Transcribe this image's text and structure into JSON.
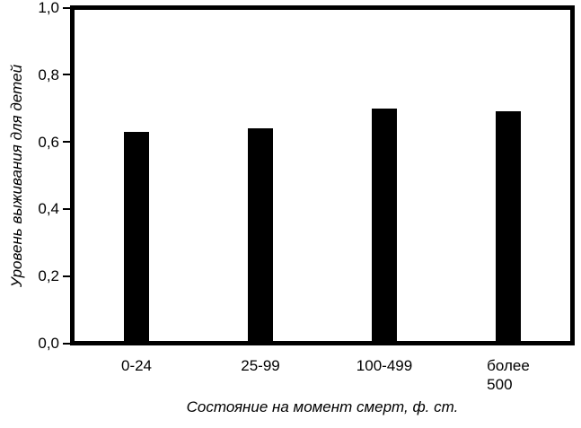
{
  "chart_data": {
    "type": "bar",
    "categories": [
      "0-24",
      "25-99",
      "100-499",
      "более\n500"
    ],
    "values": [
      0.63,
      0.64,
      0.7,
      0.69
    ],
    "xlabel": "Состояние на момент смерт, ф. ст.",
    "ylabel": "Уровень выживания для детей",
    "ylim": [
      0.0,
      1.0
    ],
    "ytick_step": 0.2,
    "yticks": [
      {
        "value": 1.0,
        "label": "1,0"
      },
      {
        "value": 0.8,
        "label": "0,8"
      },
      {
        "value": 0.6,
        "label": "0,6"
      },
      {
        "value": 0.4,
        "label": "0,4"
      },
      {
        "value": 0.2,
        "label": "0,2"
      },
      {
        "value": 0.0,
        "label": "0,0"
      }
    ],
    "bar_color": "#000000",
    "frame_color": "#000000",
    "background_color": "#ffffff",
    "grid": false,
    "legend": false
  }
}
